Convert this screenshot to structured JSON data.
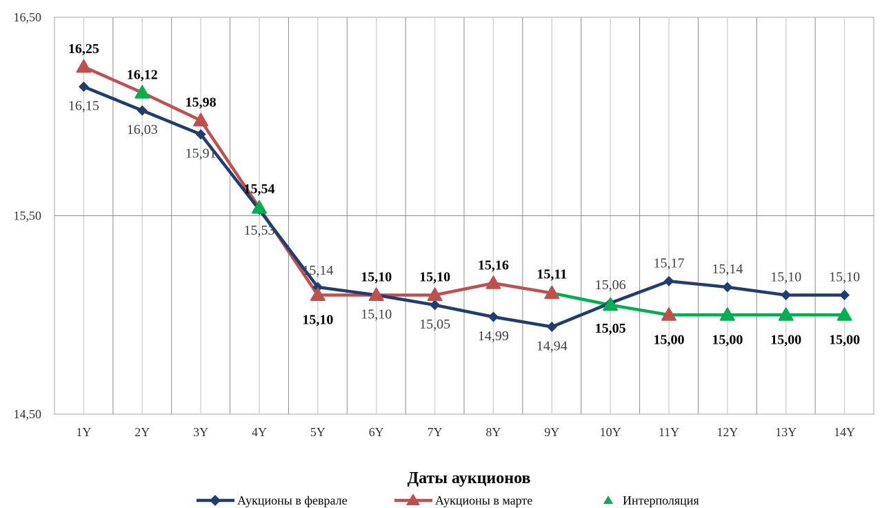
{
  "chart_data": {
    "type": "line",
    "categories": [
      "1Y",
      "2Y",
      "3Y",
      "4Y",
      "5Y",
      "6Y",
      "7Y",
      "8Y",
      "9Y",
      "10Y",
      "11Y",
      "12Y",
      "13Y",
      "14Y"
    ],
    "xlabel": "Даты аукционов",
    "ylim": [
      14.5,
      16.5
    ],
    "yticks": [
      "14,50",
      "15,50",
      "16,50"
    ],
    "grid": "vertical and major horizontal",
    "legend_position": "bottom",
    "series": [
      {
        "name": "Аукционы в феврале",
        "color": "#1F3D6E",
        "marker": "diamond",
        "values": [
          16.15,
          16.03,
          15.91,
          15.53,
          15.14,
          15.1,
          15.05,
          14.99,
          14.94,
          15.06,
          15.17,
          15.14,
          15.1,
          15.1
        ],
        "labels": [
          "16,15",
          "16,03",
          "15,91",
          "15,53",
          "15,14",
          "15,10",
          "15,05",
          "14,99",
          "14,94",
          "15,06",
          "15,17",
          "15,14",
          "15,10",
          "15,10"
        ]
      },
      {
        "name": "Аукционы в марте",
        "color": "#C0504D",
        "marker": "triangle",
        "values": [
          16.25,
          null,
          15.98,
          null,
          15.1,
          15.1,
          15.1,
          15.16,
          15.11,
          null,
          15.0,
          null,
          null,
          null
        ]
      },
      {
        "name": "Интерполяция",
        "color": "#00B050",
        "marker": "triangle",
        "values": [
          null,
          16.12,
          null,
          15.54,
          null,
          null,
          null,
          null,
          null,
          15.05,
          null,
          15.0,
          15.0,
          15.0
        ]
      }
    ],
    "combined_march_line": [
      16.25,
      16.12,
      15.98,
      15.54,
      15.1,
      15.1,
      15.1,
      15.16,
      15.11,
      15.05,
      15.0,
      15.0,
      15.0,
      15.0
    ],
    "combined_march_labels": [
      "16,25",
      "16,12",
      "15,98",
      "15,54",
      "15,10",
      "15,10",
      "15,10",
      "15,16",
      "15,11",
      "15,05",
      "15,00",
      "15,00",
      "15,00",
      "15,00"
    ]
  }
}
